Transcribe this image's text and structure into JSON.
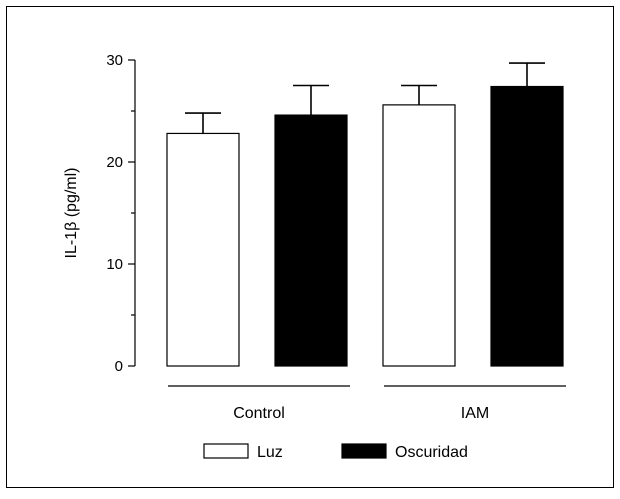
{
  "chart_data": {
    "type": "bar",
    "title": "",
    "xlabel": "",
    "ylabel": "IL-1β (pg/ml)",
    "ylim": [
      0,
      30
    ],
    "yticks": [
      0,
      10,
      20,
      30
    ],
    "categories": [
      "Control",
      "IAM"
    ],
    "series": [
      {
        "name": "Luz",
        "color": "#ffffff",
        "values": [
          22.8,
          25.6
        ],
        "errors": [
          2.0,
          1.9
        ]
      },
      {
        "name": "Oscuridad",
        "color": "#000000",
        "values": [
          24.6,
          27.4
        ],
        "errors": [
          2.9,
          2.3
        ]
      }
    ],
    "legend": "bottom",
    "grid": false
  }
}
